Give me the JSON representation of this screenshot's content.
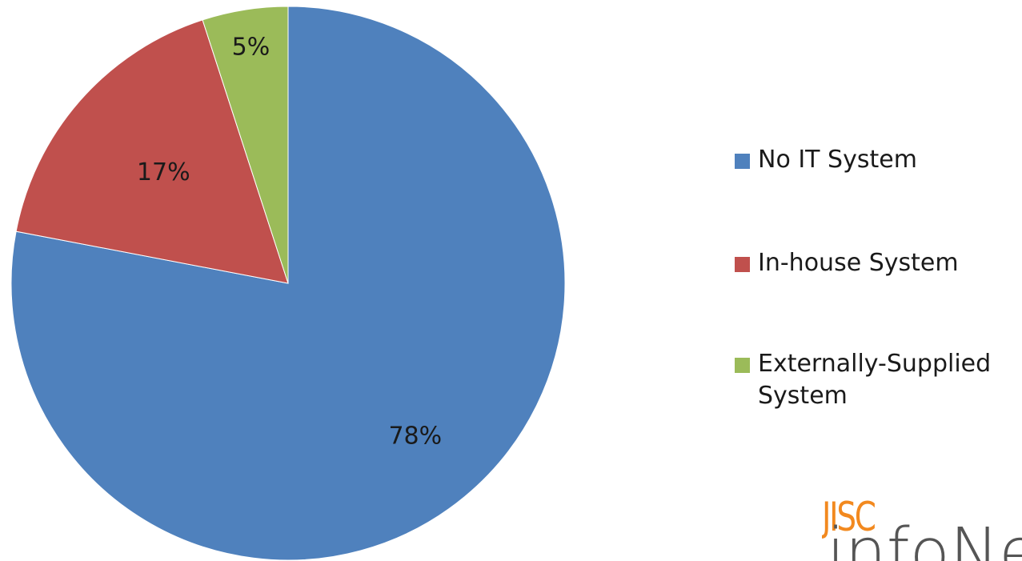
{
  "chart_data": {
    "type": "pie",
    "categories": [
      "No IT System",
      "In-house System",
      "Externally-Supplied System"
    ],
    "values": [
      78,
      17,
      5
    ],
    "data_labels": [
      "78%",
      "17%",
      "5%"
    ],
    "colors": [
      "#4f81bd",
      "#c0504d",
      "#9bbb59"
    ],
    "legend_placement": "right",
    "start_angle": "top",
    "direction": "clockwise"
  },
  "legend": {
    "items": [
      {
        "label": "No IT System",
        "color": "#4f81bd"
      },
      {
        "label": "In-house System",
        "color": "#c0504d"
      },
      {
        "label": "Externally-Supplied System",
        "color": "#9bbb59"
      }
    ]
  },
  "logo": {
    "top_text": "JISC",
    "bottom_text": "infoNet",
    "top_color": "#f2891f",
    "bottom_color": "#555555"
  }
}
